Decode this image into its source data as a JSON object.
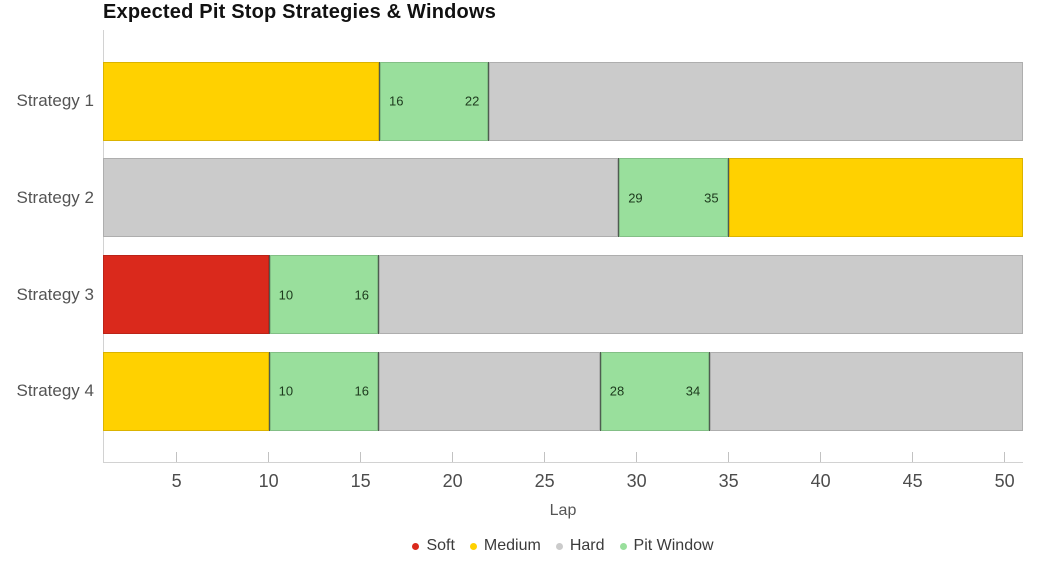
{
  "chart_data": {
    "type": "bar",
    "orientation": "horizontal",
    "title": "Expected Pit Stop Strategies & Windows",
    "xlabel": "Lap",
    "xlim": [
      1,
      51
    ],
    "xticks": [
      5,
      10,
      15,
      20,
      25,
      30,
      35,
      40,
      45,
      50
    ],
    "grid": false,
    "legend_position": "bottom-center",
    "categories": [
      "Strategy 1",
      "Strategy 2",
      "Strategy 3",
      "Strategy 4"
    ],
    "strategies": [
      {
        "name": "Strategy 1",
        "segments": [
          {
            "compound": "medium",
            "start": 1,
            "end": 16
          },
          {
            "compound": "pit_window",
            "start": 16,
            "end": 22,
            "labels": [
              "16",
              "22"
            ]
          },
          {
            "compound": "hard",
            "start": 22,
            "end": 51
          }
        ]
      },
      {
        "name": "Strategy 2",
        "segments": [
          {
            "compound": "hard",
            "start": 1,
            "end": 29
          },
          {
            "compound": "pit_window",
            "start": 29,
            "end": 35,
            "labels": [
              "29",
              "35"
            ]
          },
          {
            "compound": "medium",
            "start": 35,
            "end": 51
          }
        ]
      },
      {
        "name": "Strategy 3",
        "segments": [
          {
            "compound": "soft",
            "start": 1,
            "end": 10
          },
          {
            "compound": "pit_window",
            "start": 10,
            "end": 16,
            "labels": [
              "10",
              "16"
            ]
          },
          {
            "compound": "hard",
            "start": 16,
            "end": 51
          }
        ]
      },
      {
        "name": "Strategy 4",
        "segments": [
          {
            "compound": "medium",
            "start": 1,
            "end": 10
          },
          {
            "compound": "pit_window",
            "start": 10,
            "end": 16,
            "labels": [
              "10",
              "16"
            ]
          },
          {
            "compound": "hard",
            "start": 16,
            "end": 28
          },
          {
            "compound": "pit_window",
            "start": 28,
            "end": 34,
            "labels": [
              "28",
              "34"
            ]
          },
          {
            "compound": "hard",
            "start": 34,
            "end": 51
          }
        ]
      }
    ],
    "legend": [
      {
        "label": "Soft",
        "compound": "soft",
        "color": "#da291c"
      },
      {
        "label": "Medium",
        "compound": "medium",
        "color": "#ffd100"
      },
      {
        "label": "Hard",
        "compound": "hard",
        "color": "#cbcbcb"
      },
      {
        "label": "Pit Window",
        "compound": "pit_window",
        "color": "#99df9c"
      }
    ],
    "colors": {
      "soft": "#da291c",
      "medium": "#ffd100",
      "hard": "#cbcbcb",
      "pit_window": "#99df9c",
      "pit_border": "#4e5d50",
      "pit_label": "#1d3a1d",
      "axis": "#d2d2d2",
      "tick_text": "#4c4c4c"
    }
  }
}
